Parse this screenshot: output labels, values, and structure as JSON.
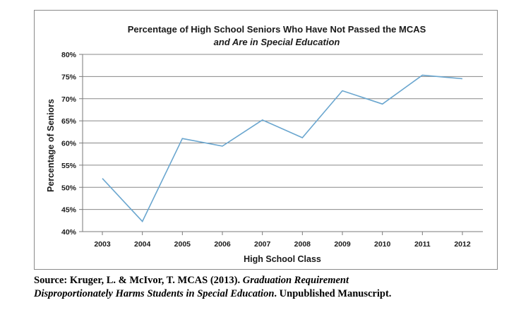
{
  "chart_data": {
    "type": "line",
    "title": "Percentage of High School Seniors Who Have Not Passed the MCAS",
    "subtitle": "and Are in Special Education",
    "xlabel": "High School Class",
    "ylabel": "Percentage of Seniors",
    "categories": [
      "2003",
      "2004",
      "2005",
      "2006",
      "2007",
      "2008",
      "2009",
      "2010",
      "2011",
      "2012"
    ],
    "series": [
      {
        "values": [
          52.0,
          42.3,
          61.0,
          59.3,
          65.2,
          61.2,
          71.8,
          68.8,
          75.3,
          74.5
        ]
      }
    ],
    "ylim": [
      40,
      80
    ],
    "yticks": [
      40,
      45,
      50,
      55,
      60,
      65,
      70,
      75,
      80
    ],
    "ytick_labels": [
      "40%",
      "45%",
      "50%",
      "55%",
      "60%",
      "65%",
      "70%",
      "75%",
      "80%"
    ],
    "grid": true,
    "legend": "none",
    "colors": {
      "line": "#6aa6cf",
      "grid": "#888888",
      "axis": "#7a7a7a"
    }
  },
  "source": {
    "prefix": "Source: Kruger, L. & McIvor, T. MCAS (2013).",
    "title_italic_1": "Graduation Requirement",
    "title_italic_2": "Disproportionately Harms Students in Special Education",
    "suffix": ". Unpublished Manuscript."
  }
}
